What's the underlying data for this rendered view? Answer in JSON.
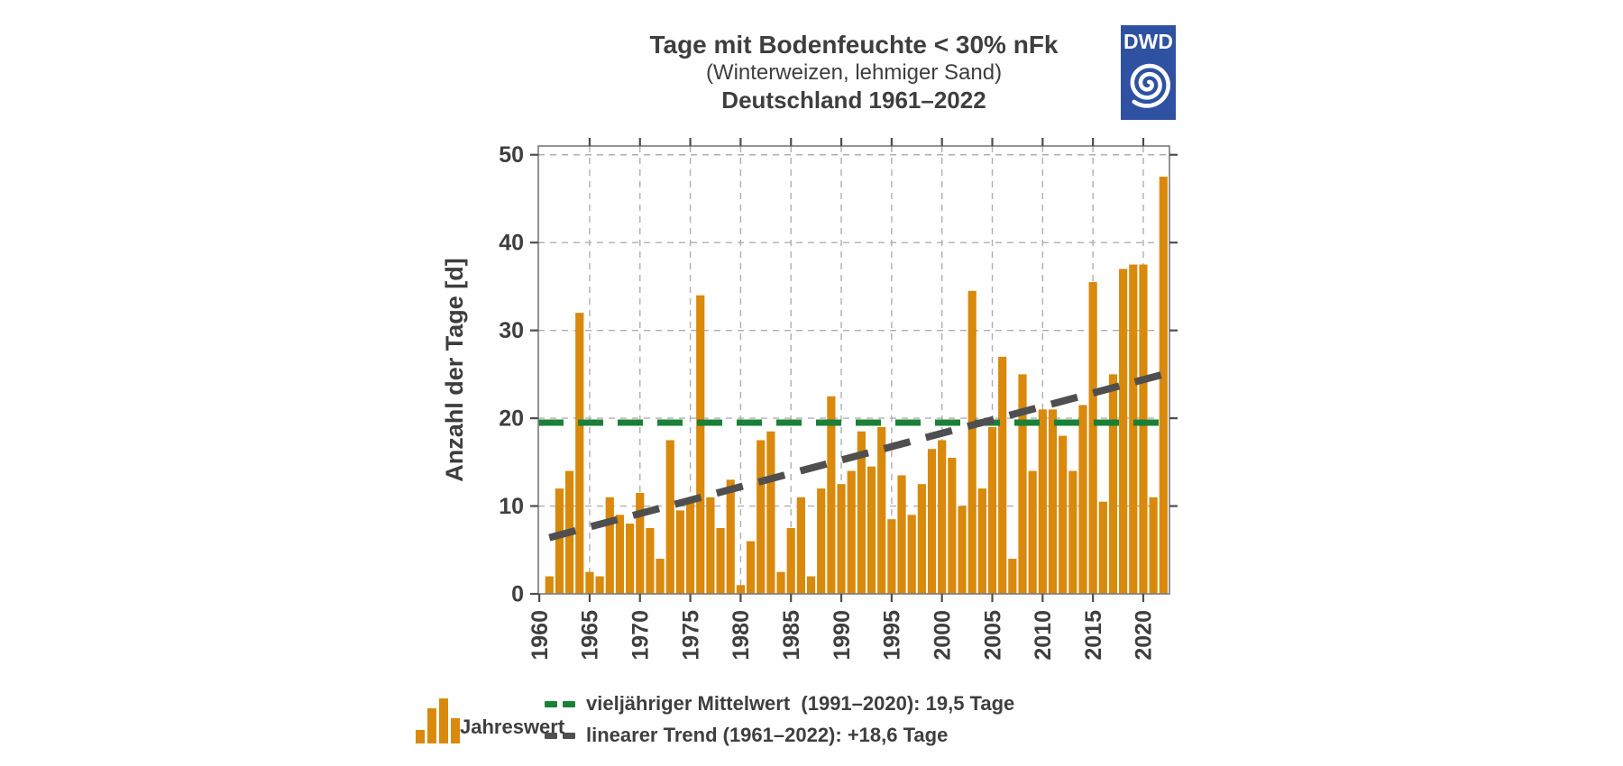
{
  "header": {
    "note": ""
  },
  "logo": {
    "text": "DWD"
  },
  "colors": {
    "bar": "#D9890B",
    "mean": "#1A8038",
    "trend": "#4F4F4F",
    "grid": "#AFAFAF",
    "frame": "#7A7A7A",
    "tick": "#4D4D4D",
    "text": "#3E3E3E",
    "logo_blue": "#2E51A2",
    "background": "#FFFFFF"
  },
  "chart_data": {
    "type": "bar",
    "title": "Tage mit Bodenfeuchte < 30% nFk",
    "subtitle": "(Winterweizen, lehmiger Sand)",
    "region_period": "Deutschland 1961–2022",
    "xlabel": "",
    "ylabel": "Anzahl der Tage [d]",
    "ylim": [
      0,
      51
    ],
    "yticks": [
      0,
      10,
      20,
      30,
      40,
      50
    ],
    "xticks": [
      1960,
      1965,
      1970,
      1975,
      1980,
      1985,
      1990,
      1995,
      2000,
      2005,
      2010,
      2015,
      2020
    ],
    "grid": true,
    "legend_position": "bottom",
    "series_label": "Jahreswert",
    "x": [
      1961,
      1962,
      1963,
      1964,
      1965,
      1966,
      1967,
      1968,
      1969,
      1970,
      1971,
      1972,
      1973,
      1974,
      1975,
      1976,
      1977,
      1978,
      1979,
      1980,
      1981,
      1982,
      1983,
      1984,
      1985,
      1986,
      1987,
      1988,
      1989,
      1990,
      1991,
      1992,
      1993,
      1994,
      1995,
      1996,
      1997,
      1998,
      1999,
      2000,
      2001,
      2002,
      2003,
      2004,
      2005,
      2006,
      2007,
      2008,
      2009,
      2010,
      2011,
      2012,
      2013,
      2014,
      2015,
      2016,
      2017,
      2018,
      2019,
      2020,
      2021,
      2022
    ],
    "values": [
      2,
      12,
      14,
      32,
      2.5,
      2,
      11,
      9,
      8,
      11.5,
      7.5,
      4,
      17.5,
      9.5,
      10.5,
      34,
      11,
      7.5,
      13,
      1,
      6,
      17.5,
      18.5,
      2.5,
      7.5,
      11,
      2,
      12,
      22.5,
      12.5,
      14,
      18.5,
      14.5,
      19,
      8.5,
      13.5,
      9,
      12.5,
      16.5,
      17.5,
      15.5,
      10,
      34.5,
      12,
      19,
      27,
      4,
      25,
      14,
      21,
      21,
      18,
      14,
      21.5,
      35.5,
      10.5,
      25,
      37,
      37.5,
      37.5,
      11,
      47.5
    ],
    "mean_line": {
      "value": 19.5,
      "period": "1991–2020",
      "label": "vieljähriger Mittelwert  (1991–2020): 19,5 Tage"
    },
    "trend_line": {
      "from": {
        "year": 1961,
        "value": 6.4
      },
      "to": {
        "year": 2022,
        "value": 25.0
      },
      "change": "+18,6 Tage",
      "label": "linearer Trend (1961–2022): +18,6 Tage"
    }
  }
}
